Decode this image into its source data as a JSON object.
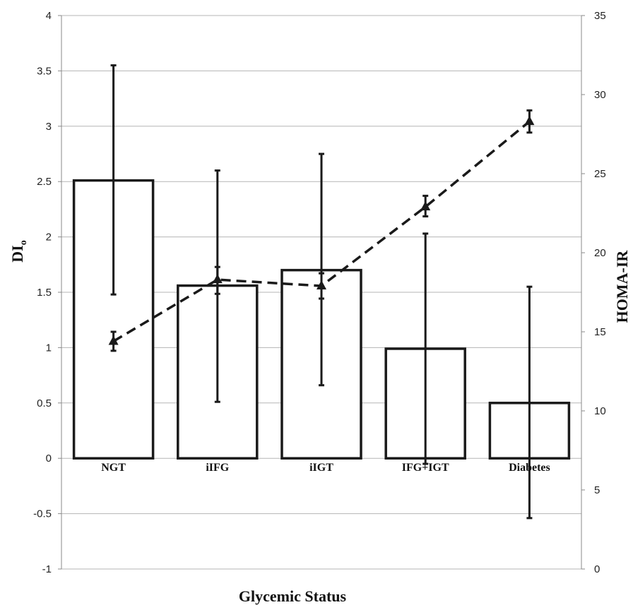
{
  "chart_data": {
    "type": "bar",
    "categories": [
      "NGT",
      "iIFG",
      "iIGT",
      "IFG+IGT",
      "Diabetes"
    ],
    "xlabel": "Glycemic Status",
    "ylabel": "DI",
    "ylabel_subscript": "o",
    "y2label": "HOMA-IR",
    "ylim": [
      -1,
      4
    ],
    "y2lim": [
      0,
      35
    ],
    "yticks": [
      "-1",
      "-0.5",
      "0",
      "0.5",
      "1",
      "1.5",
      "2",
      "2.5",
      "3",
      "3.5",
      "4"
    ],
    "y2ticks": [
      "0",
      "5",
      "10",
      "15",
      "20",
      "25",
      "30",
      "35"
    ],
    "grid": true,
    "bars": {
      "axis": "left",
      "values": [
        2.51,
        1.56,
        1.7,
        0.99,
        0.5
      ],
      "err_low": [
        1.48,
        0.51,
        0.66,
        -0.05,
        -0.54
      ],
      "err_high": [
        3.55,
        2.6,
        2.75,
        2.03,
        1.55
      ]
    },
    "line": {
      "axis": "right",
      "style": "dashed",
      "marker": "triangle",
      "values": [
        14.4,
        18.3,
        17.9,
        22.9,
        28.3
      ],
      "err_low": [
        13.8,
        17.4,
        17.1,
        22.3,
        27.6
      ],
      "err_high": [
        15.0,
        19.1,
        18.7,
        23.6,
        29.0
      ]
    },
    "colors": {
      "bar_stroke": "#1a1a1a",
      "bar_fill": "#ffffff",
      "grid": "#b5b5b5",
      "line": "#1a1a1a"
    }
  }
}
